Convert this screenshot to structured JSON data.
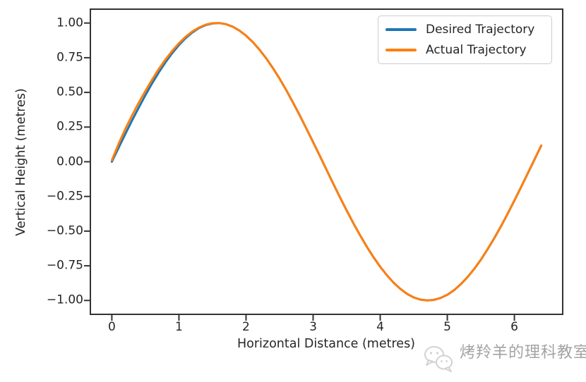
{
  "chart_data": {
    "type": "line",
    "title": "",
    "xlabel": "Horizontal Distance (metres)",
    "ylabel": "Vertical Height (metres)",
    "xlim": [
      -0.32,
      6.72
    ],
    "ylim": [
      -1.1,
      1.1
    ],
    "grid": false,
    "legend_position": "upper right",
    "xticks": [
      0,
      1,
      2,
      3,
      4,
      5,
      6
    ],
    "xticklabels": [
      "0",
      "1",
      "2",
      "3",
      "4",
      "5",
      "6"
    ],
    "yticks": [
      1.0,
      0.75,
      0.5,
      0.25,
      0.0,
      -0.25,
      -0.5,
      -0.75,
      -1.0
    ],
    "yticklabels": [
      "1.00",
      "0.75",
      "0.50",
      "0.25",
      "0.00",
      "−0.25",
      "−0.50",
      "−0.75",
      "−1.00"
    ],
    "x": [
      0.0,
      0.1,
      0.2,
      0.3,
      0.4,
      0.5,
      0.6,
      0.7,
      0.8,
      0.9,
      1.0,
      1.1,
      1.2,
      1.3,
      1.4,
      1.5,
      1.6,
      1.7,
      1.8,
      1.9,
      2.0,
      2.1,
      2.2,
      2.3,
      2.4,
      2.5,
      2.6,
      2.7,
      2.8,
      2.9,
      3.0,
      3.1,
      3.2,
      3.3,
      3.4,
      3.5,
      3.6,
      3.7,
      3.8,
      3.9,
      4.0,
      4.1,
      4.2,
      4.3,
      4.4,
      4.5,
      4.6,
      4.7,
      4.8,
      4.9,
      5.0,
      5.1,
      5.2,
      5.3,
      5.4,
      5.5,
      5.6,
      5.7,
      5.8,
      5.9,
      6.0,
      6.1,
      6.2,
      6.3,
      6.4
    ],
    "series": [
      {
        "name": "Desired Trajectory",
        "color": "#1f77b4",
        "values": [
          0.0,
          0.1,
          0.199,
          0.296,
          0.389,
          0.479,
          0.565,
          0.644,
          0.717,
          0.783,
          0.841,
          0.891,
          0.932,
          0.964,
          0.985,
          0.997,
          1.0,
          0.992,
          0.974,
          0.946,
          0.909,
          0.863,
          0.808,
          0.746,
          0.675,
          0.599,
          0.516,
          0.427,
          0.335,
          0.239,
          0.141,
          0.042,
          -0.058,
          -0.158,
          -0.256,
          -0.351,
          -0.443,
          -0.53,
          -0.612,
          -0.688,
          -0.757,
          -0.818,
          -0.872,
          -0.916,
          -0.952,
          -0.978,
          -0.994,
          -1.0,
          -0.996,
          -0.982,
          -0.959,
          -0.926,
          -0.883,
          -0.832,
          -0.773,
          -0.706,
          -0.631,
          -0.551,
          -0.465,
          -0.374,
          -0.279,
          -0.182,
          -0.083,
          0.017,
          0.117
        ]
      },
      {
        "name": "Actual Trajectory",
        "color": "#ff7f0e",
        "values": [
          0.01,
          0.128,
          0.235,
          0.332,
          0.424,
          0.51,
          0.592,
          0.668,
          0.737,
          0.799,
          0.854,
          0.901,
          0.939,
          0.968,
          0.988,
          0.999,
          1.0,
          0.992,
          0.974,
          0.946,
          0.909,
          0.863,
          0.808,
          0.746,
          0.675,
          0.599,
          0.516,
          0.427,
          0.335,
          0.239,
          0.141,
          0.042,
          -0.058,
          -0.158,
          -0.256,
          -0.351,
          -0.443,
          -0.53,
          -0.612,
          -0.688,
          -0.757,
          -0.818,
          -0.872,
          -0.916,
          -0.952,
          -0.978,
          -0.994,
          -1.0,
          -0.996,
          -0.982,
          -0.959,
          -0.926,
          -0.883,
          -0.832,
          -0.773,
          -0.706,
          -0.631,
          -0.551,
          -0.465,
          -0.374,
          -0.279,
          -0.182,
          -0.083,
          0.017,
          0.117
        ]
      }
    ],
    "line_width": 3,
    "spine_color": "#333333",
    "tick_color": "#333333",
    "text_color": "#262626"
  },
  "legend": {
    "entries": [
      {
        "label": "Desired Trajectory",
        "color": "#1f77b4"
      },
      {
        "label": "Actual Trajectory",
        "color": "#ff7f0e"
      }
    ]
  },
  "watermark": {
    "text": "烤羚羊的理科教室",
    "icon": "speech-bubbles-icon",
    "color": "#a3a3a3"
  }
}
